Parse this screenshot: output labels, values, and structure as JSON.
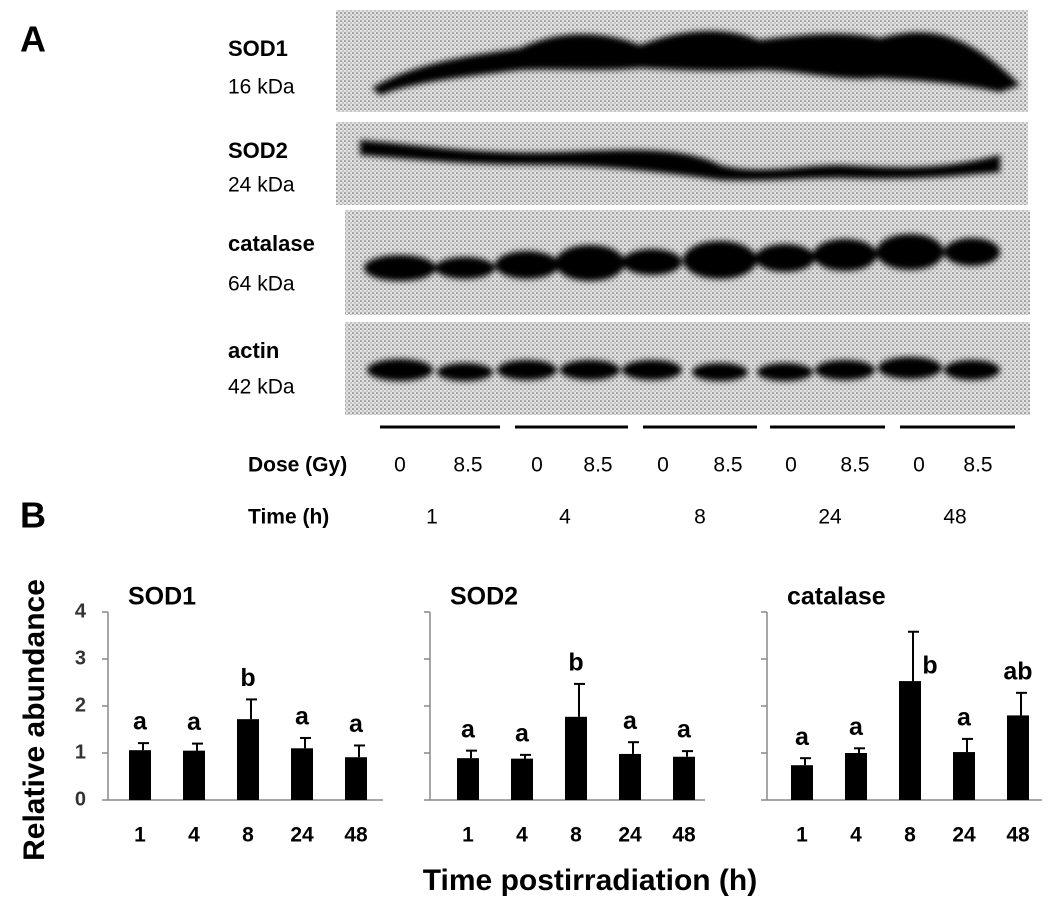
{
  "panel_a": {
    "letter": "A",
    "blots": [
      {
        "protein": "SOD1",
        "size": "16 kDa"
      },
      {
        "protein": "SOD2",
        "size": "24 kDa"
      },
      {
        "protein": "catalase",
        "size": "64 kDa"
      },
      {
        "protein": "actin",
        "size": "42 kDa"
      }
    ],
    "dose_label": "Dose (Gy)",
    "doses": [
      "0",
      "8.5",
      "0",
      "8.5",
      "0",
      "8.5",
      "0",
      "8.5",
      "0",
      "8.5"
    ],
    "time_label": "Time (h)",
    "times": [
      "1",
      "4",
      "8",
      "24",
      "48"
    ]
  },
  "panel_b": {
    "letter": "B",
    "y_label": "Relative abundance",
    "x_label": "Time postirradiation (h)"
  },
  "chart_data": [
    {
      "type": "bar",
      "title": "SOD1",
      "categories": [
        "1",
        "4",
        "8",
        "24",
        "48"
      ],
      "values": [
        1.06,
        1.05,
        1.72,
        1.1,
        0.91
      ],
      "errors": [
        0.15,
        0.15,
        0.42,
        0.22,
        0.25
      ],
      "annotations": [
        "a",
        "a",
        "b",
        "a",
        "a"
      ],
      "color": "#000000",
      "ylim": [
        0,
        4
      ],
      "yticks": [
        0,
        1,
        2,
        3,
        4
      ],
      "tick_labels": true
    },
    {
      "type": "bar",
      "title": "SOD2",
      "categories": [
        "1",
        "4",
        "8",
        "24",
        "48"
      ],
      "values": [
        0.89,
        0.88,
        1.77,
        0.98,
        0.92
      ],
      "errors": [
        0.16,
        0.08,
        0.7,
        0.25,
        0.12
      ],
      "annotations": [
        "a",
        "a",
        "b",
        "a",
        "a"
      ],
      "color": "#000000",
      "ylim": [
        0,
        4
      ],
      "yticks": [
        0,
        1,
        2,
        3,
        4
      ],
      "tick_labels": false
    },
    {
      "type": "bar",
      "title": "catalase",
      "categories": [
        "1",
        "4",
        "8",
        "24",
        "48"
      ],
      "values": [
        0.74,
        1.0,
        2.53,
        1.02,
        1.8
      ],
      "errors": [
        0.15,
        0.1,
        1.05,
        0.28,
        0.48
      ],
      "annotations": [
        "a",
        "a",
        "b",
        "a",
        "ab"
      ],
      "color": "#000000",
      "ylim": [
        0,
        4
      ],
      "yticks": [
        0,
        1,
        2,
        3,
        4
      ],
      "tick_labels": false
    }
  ]
}
